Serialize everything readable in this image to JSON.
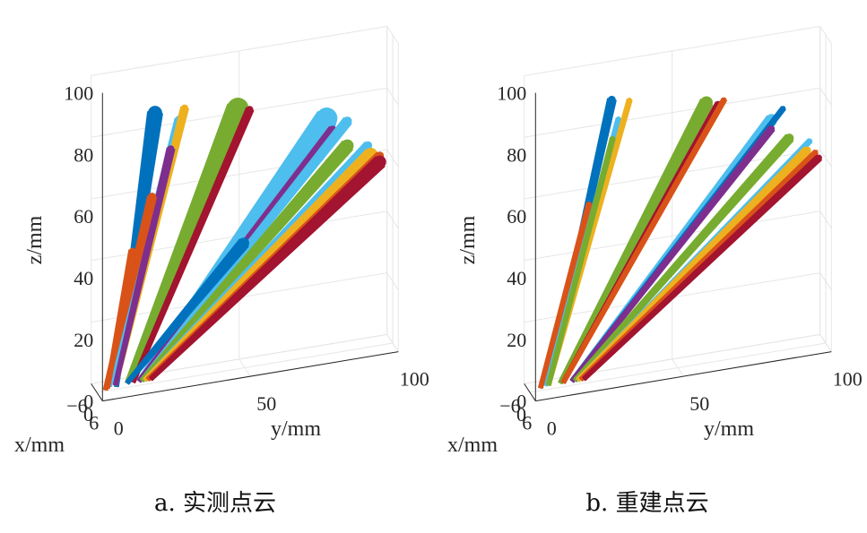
{
  "chart_data": [
    {
      "type": "scatter3d",
      "caption": "a. 实测点云",
      "xlabel": "x/mm",
      "ylabel": "y/mm",
      "zlabel": "z/mm",
      "xticks": [
        "−6",
        "0",
        "6"
      ],
      "yticks": [
        "0",
        "50",
        "100"
      ],
      "zticks": [
        "0",
        "20",
        "40",
        "60",
        "80",
        "100"
      ],
      "xlim": [
        -6,
        6
      ],
      "ylim": [
        0,
        100
      ],
      "zlim": [
        0,
        100
      ],
      "grid": true,
      "series": [
        {
          "color": "#0072BD",
          "values": [
            [
              -2,
              6,
              2
            ],
            [
              1,
              20,
              87
            ]
          ],
          "width": 16
        },
        {
          "color": "#4DBEEE",
          "values": [
            [
              -1,
              4,
              2
            ],
            [
              0,
              28,
              84
            ]
          ],
          "width": 10
        },
        {
          "color": "#EDB120",
          "values": [
            [
              -1,
              6,
              2
            ],
            [
              1,
              30,
              87
            ]
          ],
          "width": 8
        },
        {
          "color": "#7E2F8E",
          "values": [
            [
              -1,
              6,
              2
            ],
            [
              0,
              25,
              75
            ]
          ],
          "width": 8
        },
        {
          "color": "#D95319",
          "values": [
            [
              -3,
              2,
              2
            ],
            [
              1,
              19,
              60
            ]
          ],
          "width": 9
        },
        {
          "color": "#D95319",
          "values": [
            [
              -2,
              3,
              2
            ],
            [
              0,
              12,
              44
            ]
          ],
          "width": 7
        },
        {
          "color": "#77AC30",
          "values": [
            [
              -1,
              10,
              2
            ],
            [
              1,
              48,
              84
            ]
          ],
          "width": 24
        },
        {
          "color": "#A2142F",
          "values": [
            [
              -1,
              12,
              2
            ],
            [
              1,
              52,
              83
            ]
          ],
          "width": 8
        },
        {
          "color": "#4DBEEE",
          "values": [
            [
              -1,
              14,
              2
            ],
            [
              1,
              78,
              76
            ]
          ],
          "width": 24
        },
        {
          "color": "#7E2F8E",
          "values": [
            [
              -1,
              14,
              2
            ],
            [
              1,
              80,
              72
            ]
          ],
          "width": 9
        },
        {
          "color": "#4DBEEE",
          "values": [
            [
              -1,
              15,
              2
            ],
            [
              1,
              85,
              74
            ]
          ],
          "width": 10
        },
        {
          "color": "#77AC30",
          "values": [
            [
              -1,
              15,
              2
            ],
            [
              1,
              85,
              66
            ]
          ],
          "width": 14
        },
        {
          "color": "#4DBEEE",
          "values": [
            [
              -1,
              16,
              2
            ],
            [
              1,
              92,
              65
            ]
          ],
          "width": 9
        },
        {
          "color": "#EDB120",
          "values": [
            [
              -1,
              16,
              2
            ],
            [
              1,
              93,
              62
            ]
          ],
          "width": 14
        },
        {
          "color": "#D95319",
          "values": [
            [
              -1,
              17,
              2
            ],
            [
              1,
              96,
              61
            ]
          ],
          "width": 9
        },
        {
          "color": "#A2142F",
          "values": [
            [
              -1,
              18,
              2
            ],
            [
              1,
              96,
              59
            ]
          ],
          "width": 14
        },
        {
          "color": "#0072BD",
          "values": [
            [
              -1,
              10,
              2
            ],
            [
              1,
              50,
              40
            ]
          ],
          "width": 12
        }
      ]
    },
    {
      "type": "scatter3d",
      "caption": "b. 重建点云",
      "xlabel": "x/mm",
      "ylabel": "y/mm",
      "zlabel": "z/mm",
      "xticks": [
        "−6",
        "0",
        "6"
      ],
      "yticks": [
        "0",
        "50",
        "100"
      ],
      "zticks": [
        "0",
        "20",
        "40",
        "60",
        "80",
        "100"
      ],
      "xlim": [
        -6,
        6
      ],
      "ylim": [
        0,
        100
      ],
      "zlim": [
        0,
        100
      ],
      "grid": true,
      "series": [
        {
          "color": "#0072BD",
          "values": [
            [
              -1,
              6,
              2
            ],
            [
              1,
              28,
              90
            ]
          ],
          "width": 9
        },
        {
          "color": "#4DBEEE",
          "values": [
            [
              -1,
              5,
              2
            ],
            [
              0,
              30,
              84
            ]
          ],
          "width": 5
        },
        {
          "color": "#EDB120",
          "values": [
            [
              -1,
              6,
              2
            ],
            [
              1,
              34,
              89
            ]
          ],
          "width": 5
        },
        {
          "color": "#77AC30",
          "values": [
            [
              -1,
              6,
              2
            ],
            [
              0,
              28,
              78
            ]
          ],
          "width": 5
        },
        {
          "color": "#D95319",
          "values": [
            [
              -2,
              3,
              2
            ],
            [
              0,
              20,
              58
            ]
          ],
          "width": 5
        },
        {
          "color": "#77AC30",
          "values": [
            [
              -1,
              10,
              2
            ],
            [
              1,
              60,
              84
            ]
          ],
          "width": 14
        },
        {
          "color": "#A2142F",
          "values": [
            [
              -1,
              11,
              2
            ],
            [
              1,
              64,
              83
            ]
          ],
          "width": 6
        },
        {
          "color": "#D95319",
          "values": [
            [
              -1,
              11,
              2
            ],
            [
              1,
              66,
              84
            ]
          ],
          "width": 5
        },
        {
          "color": "#4DBEEE",
          "values": [
            [
              -1,
              14,
              2
            ],
            [
              1,
              82,
              75
            ]
          ],
          "width": 12
        },
        {
          "color": "#0072BD",
          "values": [
            [
              -1,
              14,
              2
            ],
            [
              1,
              86,
              78
            ]
          ],
          "width": 5
        },
        {
          "color": "#7E2F8E",
          "values": [
            [
              -1,
              14,
              2
            ],
            [
              1,
              82,
              72
            ]
          ],
          "width": 7
        },
        {
          "color": "#77AC30",
          "values": [
            [
              -1,
              15,
              2
            ],
            [
              1,
              88,
              68
            ]
          ],
          "width": 10
        },
        {
          "color": "#4DBEEE",
          "values": [
            [
              -1,
              16,
              2
            ],
            [
              1,
              95,
              66
            ]
          ],
          "width": 5
        },
        {
          "color": "#EDB120",
          "values": [
            [
              -1,
              16,
              2
            ],
            [
              1,
              94,
              63
            ]
          ],
          "width": 9
        },
        {
          "color": "#D95319",
          "values": [
            [
              -1,
              17,
              2
            ],
            [
              1,
              97,
              62
            ]
          ],
          "width": 5
        },
        {
          "color": "#A2142F",
          "values": [
            [
              -1,
              18,
              2
            ],
            [
              1,
              98,
              60
            ]
          ],
          "width": 7
        }
      ]
    }
  ]
}
